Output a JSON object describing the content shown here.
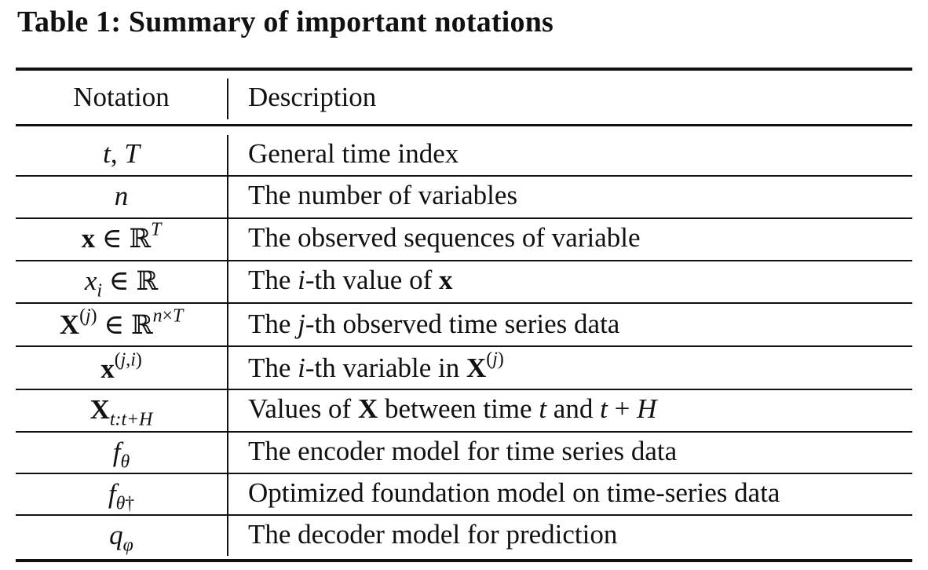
{
  "title": "Table 1: Summary of important notations",
  "header": {
    "notation": "Notation",
    "description": "Description"
  },
  "rows": [
    {
      "notation": "t, T",
      "description": "General time index"
    },
    {
      "notation": "n",
      "description": "The number of variables"
    },
    {
      "notation": "x ∈ ℝ^T",
      "description": "The observed sequences of variable"
    },
    {
      "notation": "x_i ∈ ℝ",
      "description": "The i-th value of x"
    },
    {
      "notation": "X^(j) ∈ ℝ^(n×T)",
      "description": "The j-th observed time series data"
    },
    {
      "notation": "x^(j,i)",
      "description": "The i-th variable in X^(j)"
    },
    {
      "notation": "X_{t:t+H}",
      "description": "Values of X between time t and t + H"
    },
    {
      "notation": "f_θ",
      "description": "The encoder model for time series data"
    },
    {
      "notation": "f_θ†",
      "description": "Optimized foundation model on time-series data"
    },
    {
      "notation": "q_φ",
      "description": "The decoder model for prediction"
    }
  ],
  "glyphs": {
    "t": "t",
    "T": "T",
    "n": "n",
    "x": "x",
    "X": "X",
    "i": "i",
    "j": "j",
    "in": "∈",
    "reals": "ℝ",
    "times": "×",
    "theta": "θ",
    "dagger": "†",
    "phi": "φ",
    "q": "q",
    "f": "f",
    "H": "H",
    "plus": "+",
    "comma": ",",
    "colon": ":",
    "lparen": "(",
    "rparen": ")",
    "and": "and"
  },
  "desc_parts": {
    "r4_a": "The ",
    "r4_b": "-th value of ",
    "r5_a": "The ",
    "r5_b": "-th observed time series data",
    "r6_a": "The ",
    "r6_b": "-th variable in ",
    "r7_a": "Values of ",
    "r7_b": " between time "
  }
}
